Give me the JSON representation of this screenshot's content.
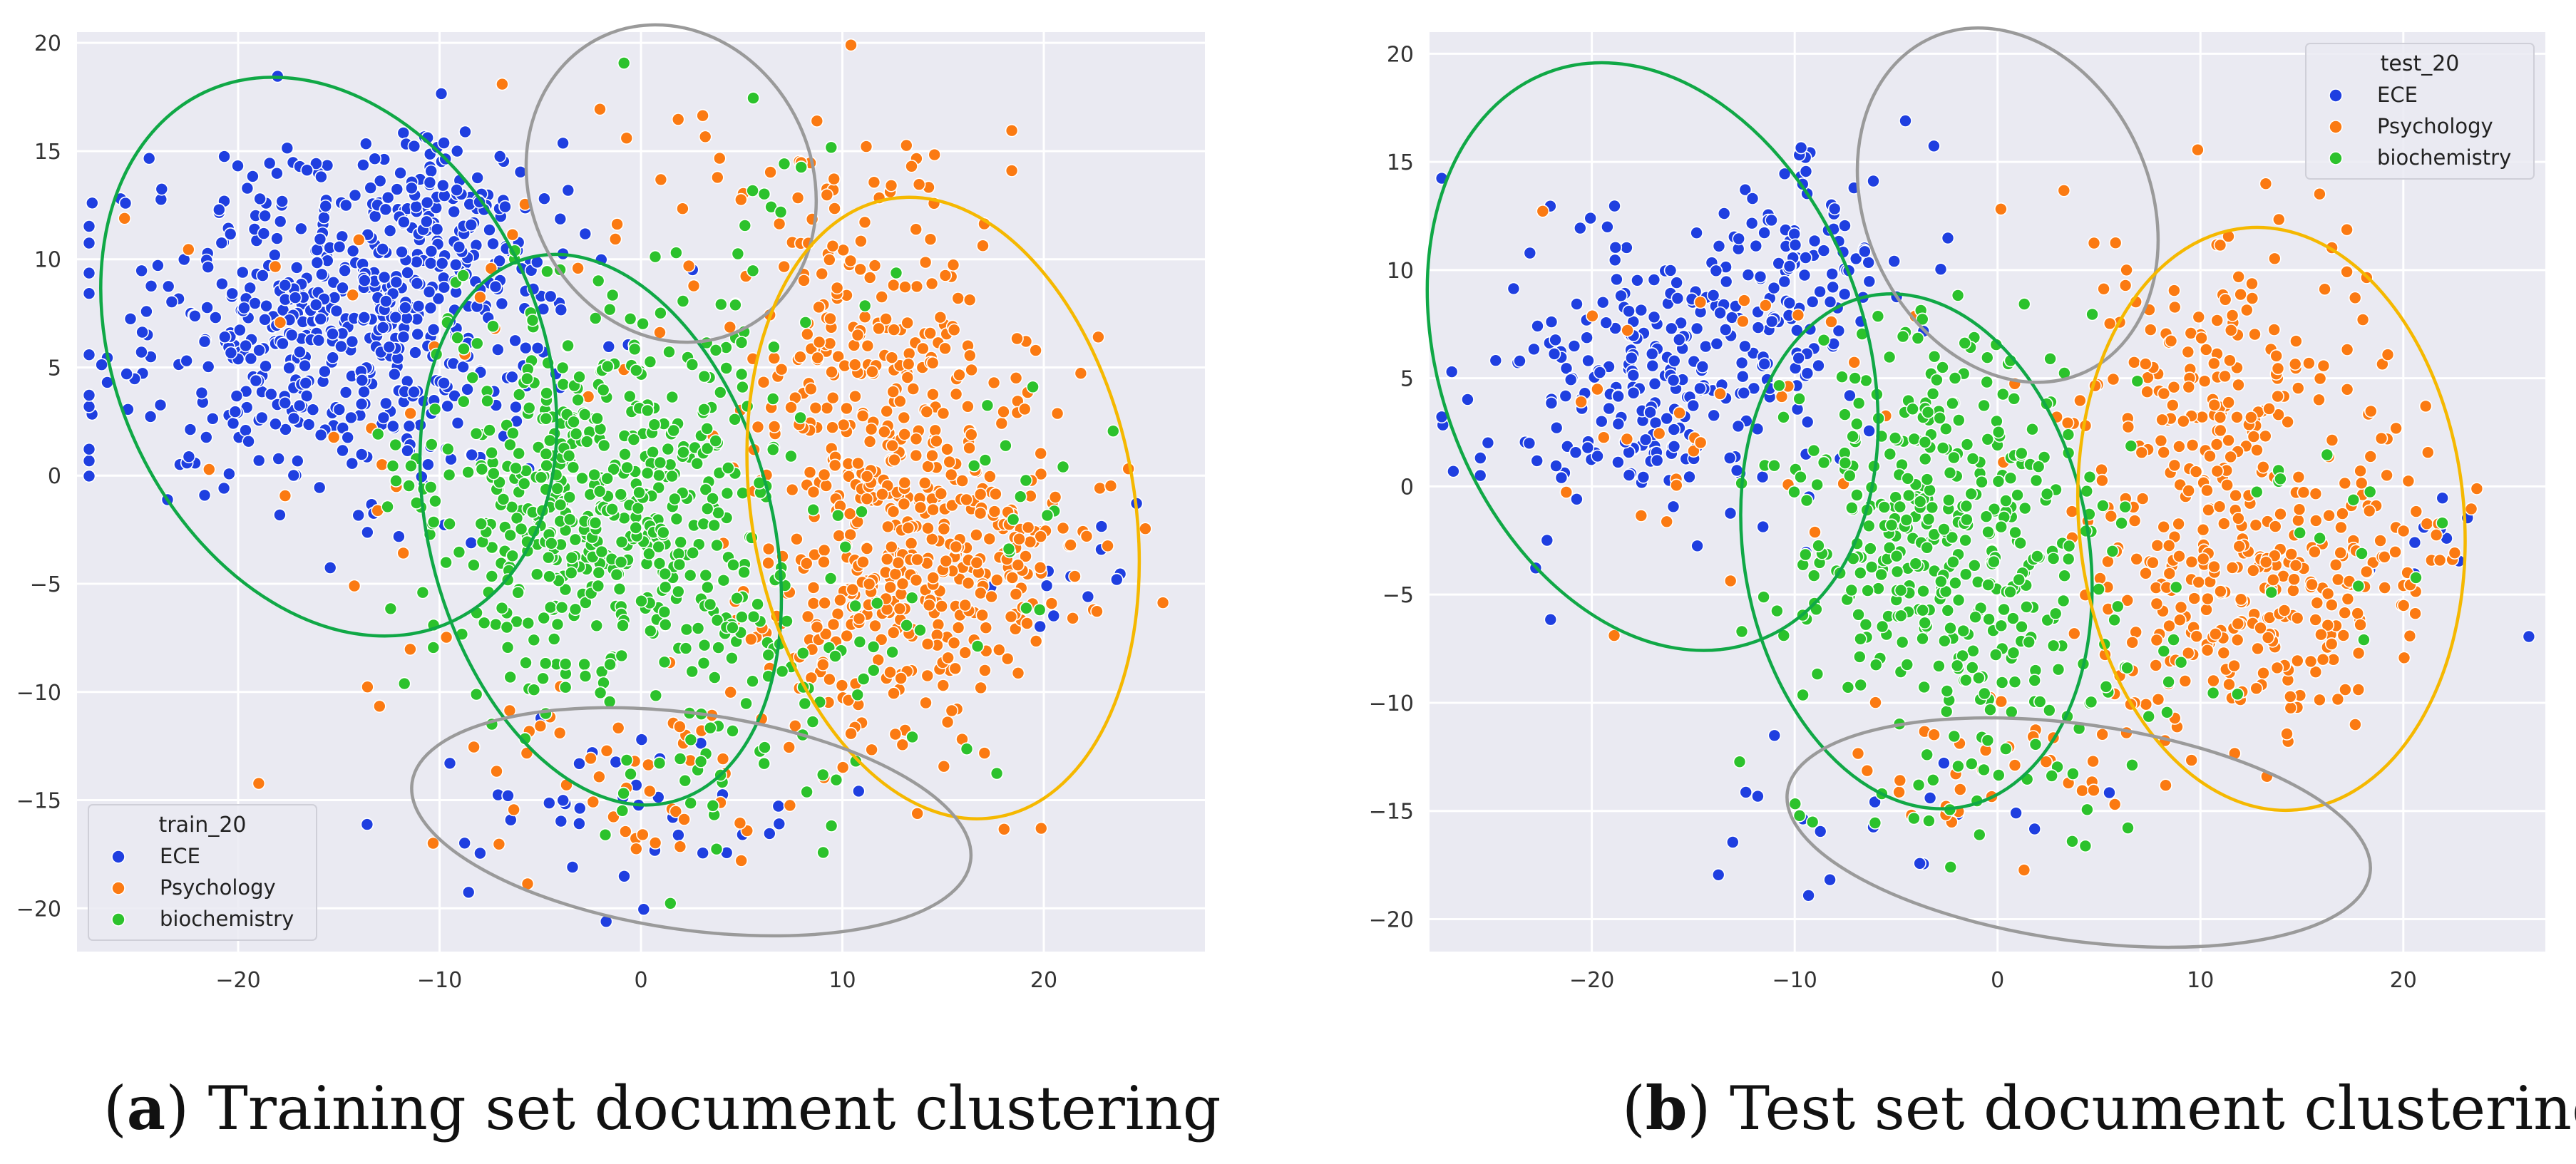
{
  "colors": {
    "plot_bg": "#eaeaf2",
    "grid": "#ffffff",
    "ECE": "#1f3fe0",
    "Psychology": "#fb7a12",
    "biochemistry": "#2cc22c",
    "ellipse_green": "#10a846",
    "ellipse_gray": "#9a9a9a",
    "ellipse_orange": "#f5b800"
  },
  "chart_data": [
    {
      "type": "scatter",
      "title": "",
      "xlim": [
        -28,
        28
      ],
      "ylim": [
        -22,
        20.5
      ],
      "xticks": [
        -20,
        -10,
        0,
        10,
        20
      ],
      "yticks": [
        20,
        15,
        10,
        5,
        0,
        -5,
        -10,
        -15,
        -20
      ],
      "xtick_labels": [
        "−20",
        "−10",
        "0",
        "10",
        "20"
      ],
      "ytick_labels": [
        "20",
        "15",
        "10",
        "5",
        "0",
        "−5",
        "−10",
        "−15",
        "−20"
      ],
      "legend": {
        "title": "train_20",
        "position": "lower-left",
        "entries": [
          "ECE",
          "Psychology",
          "biochemistry"
        ]
      },
      "series": [
        {
          "name": "ECE",
          "clusters": [
            {
              "cx": -15,
              "cy": 7,
              "sx": 5.5,
              "sy": 3.8,
              "n": 520
            },
            {
              "cx": -10,
              "cy": 11.5,
              "sx": 2.5,
              "sy": 2.2,
              "n": 120
            },
            {
              "cx": -2,
              "cy": -15.5,
              "sx": 6,
              "sy": 2,
              "n": 40
            },
            {
              "cx": 22,
              "cy": -4,
              "sx": 2,
              "sy": 2,
              "n": 12
            }
          ]
        },
        {
          "name": "Psychology",
          "clusters": [
            {
              "cx": 12,
              "cy": 4,
              "sx": 3.5,
              "sy": 5,
              "n": 330
            },
            {
              "cx": 13,
              "cy": -6,
              "sx": 3.5,
              "sy": 3,
              "n": 220
            },
            {
              "cx": 19,
              "cy": -3,
              "sx": 2.5,
              "sy": 2,
              "n": 70
            },
            {
              "cx": 0,
              "cy": -13,
              "sx": 6,
              "sy": 2.5,
              "n": 60
            },
            {
              "cx": -13,
              "cy": 5,
              "sx": 5,
              "sy": 5,
              "n": 25
            },
            {
              "cx": 2,
              "cy": 13,
              "sx": 5,
              "sy": 3,
              "n": 20
            }
          ]
        },
        {
          "name": "biochemistry",
          "clusters": [
            {
              "cx": -2,
              "cy": -1,
              "sx": 4.2,
              "sy": 4.5,
              "n": 520
            },
            {
              "cx": 6,
              "cy": -7,
              "sx": 4,
              "sy": 2.5,
              "n": 80
            },
            {
              "cx": 2,
              "cy": -15,
              "sx": 6,
              "sy": 2,
              "n": 30
            },
            {
              "cx": 19,
              "cy": -2,
              "sx": 2.5,
              "sy": 3,
              "n": 18
            },
            {
              "cx": 5,
              "cy": 11,
              "sx": 4,
              "sy": 3,
              "n": 15
            }
          ]
        }
      ],
      "annotations": [
        {
          "shape": "ellipse",
          "color": "green",
          "cx": -15.5,
          "cy": 5.5,
          "rx": 10.5,
          "ry": 13.5,
          "rotate": -25
        },
        {
          "shape": "ellipse",
          "color": "green",
          "cx": -2,
          "cy": -2.5,
          "rx": 8.5,
          "ry": 13,
          "rotate": -15
        },
        {
          "shape": "ellipse",
          "color": "gray",
          "cx": 1.5,
          "cy": 13.5,
          "rx": 7,
          "ry": 7.5,
          "rotate": -25
        },
        {
          "shape": "ellipse",
          "color": "orange",
          "cx": 15,
          "cy": -1.5,
          "rx": 9.5,
          "ry": 14.5,
          "rotate": -10
        },
        {
          "shape": "ellipse",
          "color": "gray",
          "cx": 2.5,
          "cy": -16,
          "rx": 14,
          "ry": 5,
          "rotate": 8
        }
      ]
    },
    {
      "type": "scatter",
      "title": "",
      "xlim": [
        -28,
        27
      ],
      "ylim": [
        -21.5,
        21
      ],
      "xticks": [
        -20,
        -10,
        0,
        10,
        20
      ],
      "yticks": [
        20,
        15,
        10,
        5,
        0,
        -5,
        -10,
        -15,
        -20
      ],
      "xtick_labels": [
        "−20",
        "−10",
        "0",
        "10",
        "20"
      ],
      "ytick_labels": [
        "20",
        "15",
        "10",
        "5",
        "0",
        "−5",
        "−10",
        "−15",
        "−20"
      ],
      "legend": {
        "title": "test_20",
        "position": "upper-right",
        "entries": [
          "ECE",
          "Psychology",
          "biochemistry"
        ]
      },
      "series": [
        {
          "name": "ECE",
          "clusters": [
            {
              "cx": -17,
              "cy": 5,
              "sx": 4,
              "sy": 3.5,
              "n": 260
            },
            {
              "cx": -9,
              "cy": 10.5,
              "sx": 2.5,
              "sy": 2.5,
              "n": 90
            },
            {
              "cx": -6,
              "cy": -15,
              "sx": 4,
              "sy": 1.5,
              "n": 20
            },
            {
              "cx": 22,
              "cy": -3,
              "sx": 2,
              "sy": 2,
              "n": 10
            }
          ]
        },
        {
          "name": "Psychology",
          "clusters": [
            {
              "cx": 11,
              "cy": 3,
              "sx": 3.5,
              "sy": 4.5,
              "n": 220
            },
            {
              "cx": 12,
              "cy": -6,
              "sx": 3.5,
              "sy": 3,
              "n": 180
            },
            {
              "cx": 18,
              "cy": -3,
              "sx": 2.5,
              "sy": 2.5,
              "n": 60
            },
            {
              "cx": 0,
              "cy": -13,
              "sx": 5,
              "sy": 2.5,
              "n": 40
            },
            {
              "cx": -13,
              "cy": 4,
              "sx": 5,
              "sy": 5,
              "n": 35
            }
          ]
        },
        {
          "name": "biochemistry",
          "clusters": [
            {
              "cx": -3,
              "cy": -2,
              "sx": 4,
              "sy": 4.5,
              "n": 380
            },
            {
              "cx": 4,
              "cy": -8,
              "sx": 3.5,
              "sy": 2.5,
              "n": 50
            },
            {
              "cx": -2,
              "cy": -15,
              "sx": 5,
              "sy": 1.5,
              "n": 15
            },
            {
              "cx": 18,
              "cy": -1,
              "sx": 3,
              "sy": 3,
              "n": 15
            }
          ]
        }
      ],
      "annotations": [
        {
          "shape": "ellipse",
          "color": "green",
          "cx": -17,
          "cy": 6,
          "rx": 10.5,
          "ry": 14,
          "rotate": -20
        },
        {
          "shape": "ellipse",
          "color": "green",
          "cx": -4,
          "cy": -3,
          "rx": 8.5,
          "ry": 12,
          "rotate": -10
        },
        {
          "shape": "ellipse",
          "color": "gray",
          "cx": 0.5,
          "cy": 13,
          "rx": 7,
          "ry": 8.5,
          "rotate": -25
        },
        {
          "shape": "ellipse",
          "color": "orange",
          "cx": 13.5,
          "cy": -1.5,
          "rx": 9.5,
          "ry": 13.5,
          "rotate": -5
        },
        {
          "shape": "ellipse",
          "color": "gray",
          "cx": 4,
          "cy": -16,
          "rx": 14.5,
          "ry": 5,
          "rotate": 8
        }
      ]
    }
  ],
  "captions": [
    {
      "letter": "a",
      "text": ") Training set document clustering"
    },
    {
      "letter": "b",
      "text": ") Test set document clustering"
    }
  ]
}
